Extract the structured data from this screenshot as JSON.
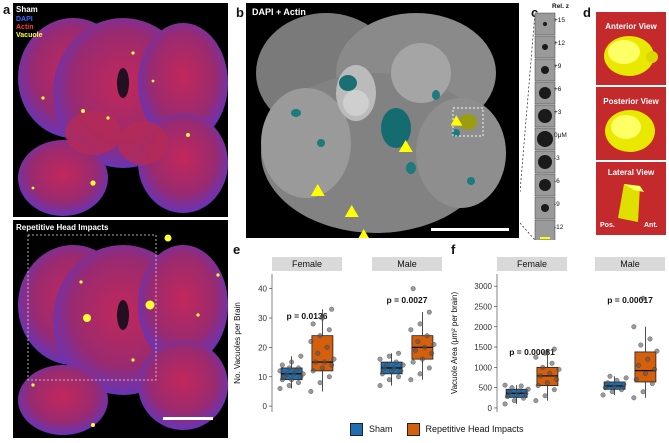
{
  "panels": {
    "a": {
      "label": "a",
      "legend": [
        {
          "text": "DAPI",
          "color": "#3b6bff"
        },
        {
          "text": "Actin",
          "color": "#ff3b3b"
        },
        {
          "text": "Vacuole",
          "color": "#ffff33"
        }
      ],
      "top_title": "Sham",
      "bottom_title": "Repetitive Head Impacts"
    },
    "b": {
      "label": "b",
      "title": "DAPI + Actin"
    },
    "c": {
      "label": "c",
      "header": "Rel. z",
      "ticks": [
        "+15",
        "+12",
        "+9",
        "+6",
        "+3",
        "0μM",
        "-3",
        "-6",
        "-9",
        "-12"
      ]
    },
    "d": {
      "label": "d",
      "views": [
        "Anterior View",
        "Posterior View",
        "Lateral View"
      ],
      "lateral_axis": {
        "left": "Pos.",
        "right": "Ant."
      }
    },
    "e": {
      "label": "e"
    },
    "f": {
      "label": "f"
    }
  },
  "legend": {
    "items": [
      {
        "name": "Sham",
        "color": "#1f6fb2"
      },
      {
        "name": "Repetitive Head Impacts",
        "color": "#d45f0c"
      }
    ]
  },
  "chart_data": [
    {
      "type": "box",
      "panel": "e",
      "ylabel": "No. Vacuoles per Brain",
      "yticks": [
        0,
        10,
        20,
        30,
        40
      ],
      "ylim": [
        -2,
        45
      ],
      "facets": [
        {
          "name": "Female",
          "pvalue": "p = 0.0136",
          "groups": [
            {
              "name": "Sham",
              "q1": 9,
              "median": 11,
              "q3": 13,
              "whisker_low": 6,
              "whisker_high": 17,
              "points": [
                6,
                7,
                8,
                9,
                9,
                10,
                10,
                11,
                11,
                11,
                12,
                12,
                13,
                13,
                14,
                15,
                17
              ]
            },
            {
              "name": "Repetitive Head Impacts",
              "q1": 12,
              "median": 15,
              "q3": 24,
              "whisker_low": 5,
              "whisker_high": 33,
              "points": [
                5,
                8,
                10,
                12,
                13,
                14,
                15,
                15,
                16,
                18,
                20,
                22,
                24,
                26,
                28,
                30,
                33
              ]
            }
          ]
        },
        {
          "name": "Male",
          "pvalue": "p = 0.0027",
          "groups": [
            {
              "name": "Sham",
              "q1": 11,
              "median": 13,
              "q3": 15,
              "whisker_low": 7,
              "whisker_high": 18,
              "points": [
                7,
                9,
                10,
                11,
                12,
                12,
                13,
                13,
                14,
                14,
                15,
                16,
                17,
                18
              ]
            },
            {
              "name": "Repetitive Head Impacts",
              "q1": 16,
              "median": 20,
              "q3": 24,
              "whisker_low": 9,
              "whisker_high": 32,
              "points": [
                9,
                11,
                13,
                15,
                16,
                18,
                19,
                20,
                21,
                22,
                24,
                26,
                28,
                32,
                40
              ]
            }
          ]
        }
      ]
    },
    {
      "type": "box",
      "panel": "f",
      "ylabel": "Vacuole Area (μm² per brain)",
      "yticks": [
        0,
        500,
        1000,
        1500,
        2000,
        2500,
        3000
      ],
      "ylim": [
        -100,
        3300
      ],
      "facets": [
        {
          "name": "Female",
          "pvalue": "p = 0.00081",
          "groups": [
            {
              "name": "Sham",
              "q1": 260,
              "median": 360,
              "q3": 460,
              "whisker_low": 100,
              "whisker_high": 560,
              "points": [
                100,
                180,
                240,
                280,
                320,
                350,
                380,
                420,
                460,
                500,
                540,
                560
              ]
            },
            {
              "name": "Repetitive Head Impacts",
              "q1": 550,
              "median": 790,
              "q3": 1000,
              "whisker_low": 180,
              "whisker_high": 1450,
              "points": [
                180,
                300,
                450,
                550,
                620,
                700,
                790,
                850,
                950,
                1000,
                1100,
                1250,
                1350,
                1450
              ]
            }
          ]
        },
        {
          "name": "Male",
          "pvalue": "p = 0.00017",
          "groups": [
            {
              "name": "Sham",
              "q1": 460,
              "median": 540,
              "q3": 640,
              "whisker_low": 320,
              "whisker_high": 780,
              "points": [
                320,
                400,
                450,
                500,
                540,
                580,
                620,
                680,
                740,
                780
              ]
            },
            {
              "name": "Repetitive Head Impacts",
              "q1": 640,
              "median": 920,
              "q3": 1380,
              "whisker_low": 250,
              "whisker_high": 2000,
              "points": [
                250,
                400,
                600,
                700,
                850,
                950,
                1050,
                1200,
                1400,
                1550,
                1700,
                2000,
                2700
              ]
            }
          ]
        }
      ]
    }
  ]
}
